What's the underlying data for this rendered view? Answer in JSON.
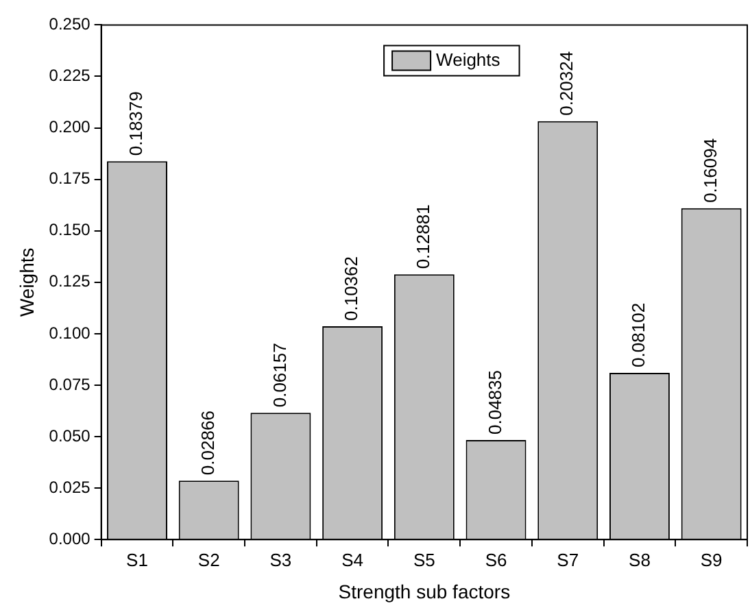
{
  "chart_data": {
    "type": "bar",
    "xlabel": "Strength sub factors",
    "ylabel": "Weights",
    "categories": [
      "S1",
      "S2",
      "S3",
      "S4",
      "S5",
      "S6",
      "S7",
      "S8",
      "S9"
    ],
    "series": [
      {
        "name": "Weights",
        "color": "#c0c0c0",
        "values": [
          0.18379,
          0.02866,
          0.06157,
          0.10362,
          0.12881,
          0.04835,
          0.20324,
          0.08102,
          0.16094
        ]
      }
    ],
    "ylim": [
      0,
      0.25
    ],
    "yticks": [
      {
        "value": 0,
        "label": "0.000"
      },
      {
        "value": 0.025,
        "label": "0.025"
      },
      {
        "value": 0.05,
        "label": "0.050"
      },
      {
        "value": 0.075,
        "label": "0.075"
      },
      {
        "value": 0.1,
        "label": "0.100"
      },
      {
        "value": 0.125,
        "label": "0.125"
      },
      {
        "value": 0.15,
        "label": "0.150"
      },
      {
        "value": 0.175,
        "label": "0.175"
      },
      {
        "value": 0.2,
        "label": "0.200"
      },
      {
        "value": 0.225,
        "label": "0.225"
      },
      {
        "value": 0.25,
        "label": "0.250"
      }
    ],
    "data_labels": true,
    "legend": "top"
  }
}
